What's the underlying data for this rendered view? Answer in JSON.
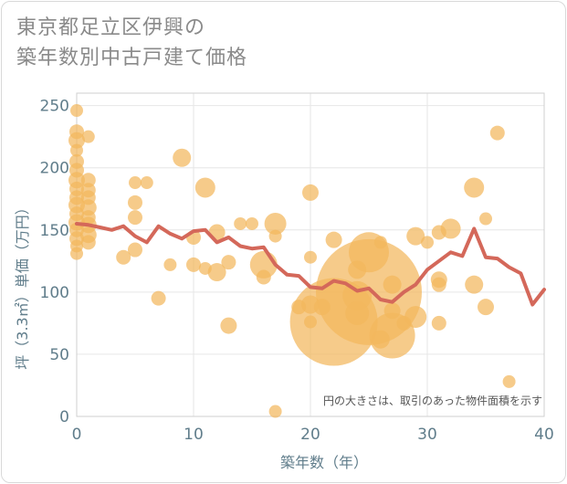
{
  "chart_data": {
    "type": "scatter",
    "title": [
      "東京都足立区伊興の",
      "築年数別中古戸建て価格"
    ],
    "xlabel": "築年数（年）",
    "ylabel": "坪（3.3㎡）単価（万円）",
    "xlim": [
      0,
      40
    ],
    "ylim": [
      0,
      260
    ],
    "xticks": [
      0,
      10,
      20,
      30,
      40
    ],
    "yticks": [
      0,
      50,
      100,
      150,
      200,
      250
    ],
    "note": "円の大きさは、取引のあった物件面積を示す",
    "colors": {
      "bubble": "#f2b75d",
      "line": "#d4685a",
      "axis": "#607d8b",
      "grid": "#e6e6e6"
    },
    "series": [
      {
        "name": "average",
        "type": "line",
        "x": [
          0,
          1,
          2,
          3,
          4,
          5,
          6,
          7,
          8,
          9,
          10,
          11,
          12,
          13,
          14,
          15,
          16,
          17,
          18,
          19,
          20,
          21,
          22,
          23,
          24,
          25,
          26,
          27,
          28,
          29,
          30,
          31,
          32,
          33,
          34,
          35,
          36,
          37,
          38,
          39,
          40
        ],
        "y": [
          155,
          154,
          152,
          150,
          153,
          145,
          140,
          153,
          147,
          143,
          149,
          150,
          140,
          144,
          137,
          135,
          136,
          122,
          114,
          113,
          104,
          103,
          109,
          107,
          101,
          103,
          94,
          92,
          100,
          106,
          118,
          125,
          132,
          129,
          151,
          128,
          127,
          120,
          115,
          90,
          102
        ]
      },
      {
        "name": "transactions",
        "type": "bubble",
        "points": [
          {
            "x": 0,
            "y": 246,
            "s": 7
          },
          {
            "x": 0,
            "y": 229,
            "s": 8
          },
          {
            "x": 0,
            "y": 222,
            "s": 9
          },
          {
            "x": 0,
            "y": 214,
            "s": 7
          },
          {
            "x": 0,
            "y": 205,
            "s": 8
          },
          {
            "x": 0,
            "y": 198,
            "s": 8
          },
          {
            "x": 0,
            "y": 190,
            "s": 9
          },
          {
            "x": 0,
            "y": 183,
            "s": 8
          },
          {
            "x": 0,
            "y": 176,
            "s": 8
          },
          {
            "x": 0,
            "y": 170,
            "s": 9
          },
          {
            "x": 0,
            "y": 163,
            "s": 8
          },
          {
            "x": 0,
            "y": 156,
            "s": 9
          },
          {
            "x": 0,
            "y": 150,
            "s": 8
          },
          {
            "x": 0,
            "y": 143,
            "s": 8
          },
          {
            "x": 0,
            "y": 137,
            "s": 7
          },
          {
            "x": 0,
            "y": 131,
            "s": 7
          },
          {
            "x": 1,
            "y": 225,
            "s": 7
          },
          {
            "x": 1,
            "y": 190,
            "s": 8
          },
          {
            "x": 1,
            "y": 182,
            "s": 8
          },
          {
            "x": 1,
            "y": 176,
            "s": 8
          },
          {
            "x": 1,
            "y": 168,
            "s": 9
          },
          {
            "x": 1,
            "y": 160,
            "s": 8
          },
          {
            "x": 1,
            "y": 154,
            "s": 9
          },
          {
            "x": 1,
            "y": 146,
            "s": 9
          },
          {
            "x": 1,
            "y": 140,
            "s": 8
          },
          {
            "x": 4,
            "y": 128,
            "s": 8
          },
          {
            "x": 5,
            "y": 188,
            "s": 7
          },
          {
            "x": 5,
            "y": 172,
            "s": 8
          },
          {
            "x": 5,
            "y": 160,
            "s": 8
          },
          {
            "x": 5,
            "y": 134,
            "s": 8
          },
          {
            "x": 6,
            "y": 188,
            "s": 7
          },
          {
            "x": 7,
            "y": 95,
            "s": 8
          },
          {
            "x": 8,
            "y": 122,
            "s": 7
          },
          {
            "x": 9,
            "y": 208,
            "s": 10
          },
          {
            "x": 10,
            "y": 144,
            "s": 8
          },
          {
            "x": 10,
            "y": 122,
            "s": 8
          },
          {
            "x": 11,
            "y": 184,
            "s": 11
          },
          {
            "x": 11,
            "y": 119,
            "s": 7
          },
          {
            "x": 12,
            "y": 148,
            "s": 9
          },
          {
            "x": 12,
            "y": 116,
            "s": 10
          },
          {
            "x": 13,
            "y": 73,
            "s": 9
          },
          {
            "x": 13,
            "y": 124,
            "s": 8
          },
          {
            "x": 14,
            "y": 155,
            "s": 7
          },
          {
            "x": 15,
            "y": 155,
            "s": 7
          },
          {
            "x": 16,
            "y": 122,
            "s": 15
          },
          {
            "x": 16,
            "y": 112,
            "s": 8
          },
          {
            "x": 17,
            "y": 155,
            "s": 12
          },
          {
            "x": 17,
            "y": 145,
            "s": 7
          },
          {
            "x": 17,
            "y": 4,
            "s": 7
          },
          {
            "x": 19,
            "y": 88,
            "s": 8
          },
          {
            "x": 20,
            "y": 180,
            "s": 9
          },
          {
            "x": 20,
            "y": 128,
            "s": 7
          },
          {
            "x": 20,
            "y": 90,
            "s": 10
          },
          {
            "x": 20,
            "y": 76,
            "s": 7
          },
          {
            "x": 21,
            "y": 88,
            "s": 9
          },
          {
            "x": 22,
            "y": 76,
            "s": 48
          },
          {
            "x": 22,
            "y": 142,
            "s": 9
          },
          {
            "x": 24,
            "y": 118,
            "s": 10
          },
          {
            "x": 24,
            "y": 97,
            "s": 16
          },
          {
            "x": 24,
            "y": 83,
            "s": 13
          },
          {
            "x": 25,
            "y": 132,
            "s": 22
          },
          {
            "x": 25,
            "y": 100,
            "s": 58
          },
          {
            "x": 26,
            "y": 140,
            "s": 7
          },
          {
            "x": 26,
            "y": 62,
            "s": 10
          },
          {
            "x": 27,
            "y": 106,
            "s": 10
          },
          {
            "x": 27,
            "y": 85,
            "s": 9
          },
          {
            "x": 27,
            "y": 65,
            "s": 25
          },
          {
            "x": 28,
            "y": 75,
            "s": 8
          },
          {
            "x": 29,
            "y": 145,
            "s": 10
          },
          {
            "x": 29,
            "y": 80,
            "s": 12
          },
          {
            "x": 30,
            "y": 140,
            "s": 7
          },
          {
            "x": 31,
            "y": 110,
            "s": 9
          },
          {
            "x": 31,
            "y": 106,
            "s": 8
          },
          {
            "x": 31,
            "y": 75,
            "s": 8
          },
          {
            "x": 31,
            "y": 148,
            "s": 8
          },
          {
            "x": 32,
            "y": 151,
            "s": 11
          },
          {
            "x": 34,
            "y": 184,
            "s": 11
          },
          {
            "x": 34,
            "y": 106,
            "s": 10
          },
          {
            "x": 35,
            "y": 159,
            "s": 7
          },
          {
            "x": 35,
            "y": 88,
            "s": 9
          },
          {
            "x": 36,
            "y": 228,
            "s": 8
          },
          {
            "x": 37,
            "y": 28,
            "s": 7
          }
        ]
      }
    ]
  }
}
